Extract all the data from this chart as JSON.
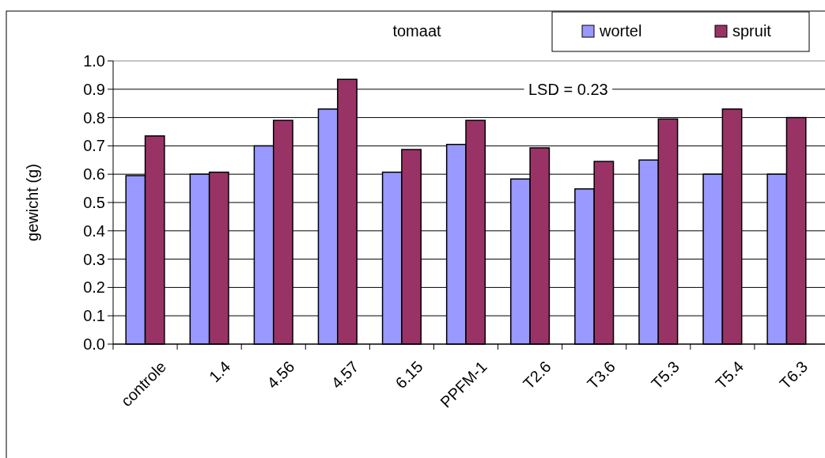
{
  "chart_data": {
    "type": "bar",
    "title": "tomaat",
    "ylabel": "gewicht (g)",
    "categories": [
      "controle",
      "1.4",
      "4.56",
      "4.57",
      "6.15",
      "PPFM-1",
      "T2.6",
      "T3.6",
      "T5.3",
      "T5.4",
      "T6.3"
    ],
    "series": [
      {
        "name": "wortel",
        "color": "#9999ff",
        "values": [
          0.595,
          0.6,
          0.7,
          0.83,
          0.607,
          0.705,
          0.583,
          0.548,
          0.65,
          0.6,
          0.6
        ]
      },
      {
        "name": "spruit",
        "color": "#993366",
        "values": [
          0.735,
          0.607,
          0.79,
          0.935,
          0.687,
          0.79,
          0.693,
          0.645,
          0.795,
          0.83,
          0.8
        ]
      }
    ],
    "ylim": [
      0,
      1
    ],
    "yticks": [
      {
        "value": 0,
        "label": "0.0"
      },
      0.1,
      0.2,
      0.3,
      0.4,
      0.5,
      0.6,
      0.7,
      0.8,
      0.9,
      {
        "value": 1,
        "label": "1.0"
      }
    ],
    "grid": "y",
    "legend": "top right",
    "annotations": [
      "LSD = 0.23"
    ]
  }
}
